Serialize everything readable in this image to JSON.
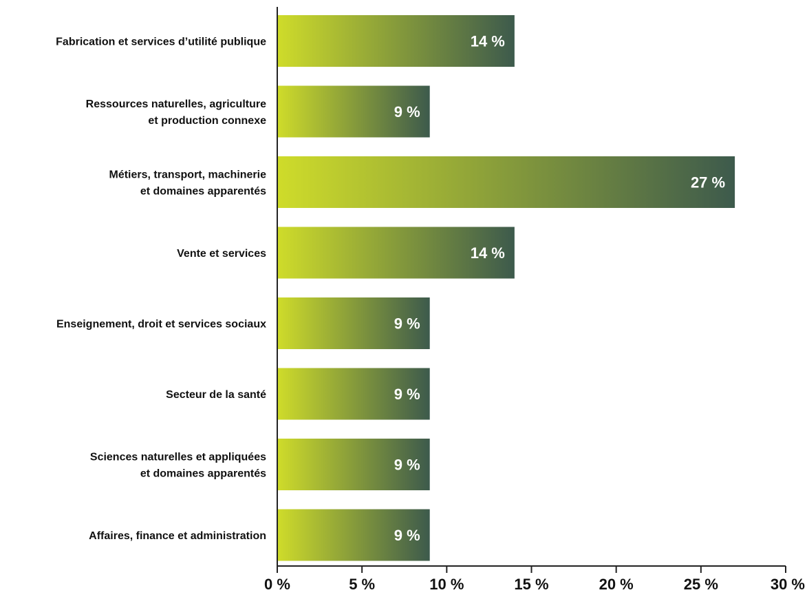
{
  "chart_data": {
    "type": "bar",
    "orientation": "horizontal",
    "categories": [
      [
        "Fabrication et services d’utilité publique"
      ],
      [
        "Ressources naturelles, agriculture",
        "et production connexe"
      ],
      [
        "Métiers, transport, machinerie",
        "et domaines apparentés"
      ],
      [
        "Vente et services"
      ],
      [
        "Enseignement, droit et services sociaux"
      ],
      [
        "Secteur de la santé"
      ],
      [
        "Sciences naturelles et appliquées",
        "et domaines apparentés"
      ],
      [
        "Affaires, finance et administration"
      ]
    ],
    "values": [
      14,
      9,
      27,
      14,
      9,
      9,
      9,
      9
    ],
    "data_labels": [
      "14 %",
      "9 %",
      "27 %",
      "14 %",
      "9 %",
      "9 %",
      "9 %",
      "9 %"
    ],
    "xlim": [
      0,
      30
    ],
    "x_ticks": [
      0,
      5,
      10,
      15,
      20,
      25,
      30
    ],
    "x_tick_labels": [
      "0 %",
      "5 %",
      "10 %",
      "15 %",
      "20 %",
      "25 %",
      "30 %"
    ],
    "grid": false,
    "legend": "none",
    "colors": {
      "bar_gradient_start": "#cfdc2a",
      "bar_gradient_end": "#3d5a4c",
      "axis": "#222222",
      "data_label": "#ffffff"
    }
  }
}
